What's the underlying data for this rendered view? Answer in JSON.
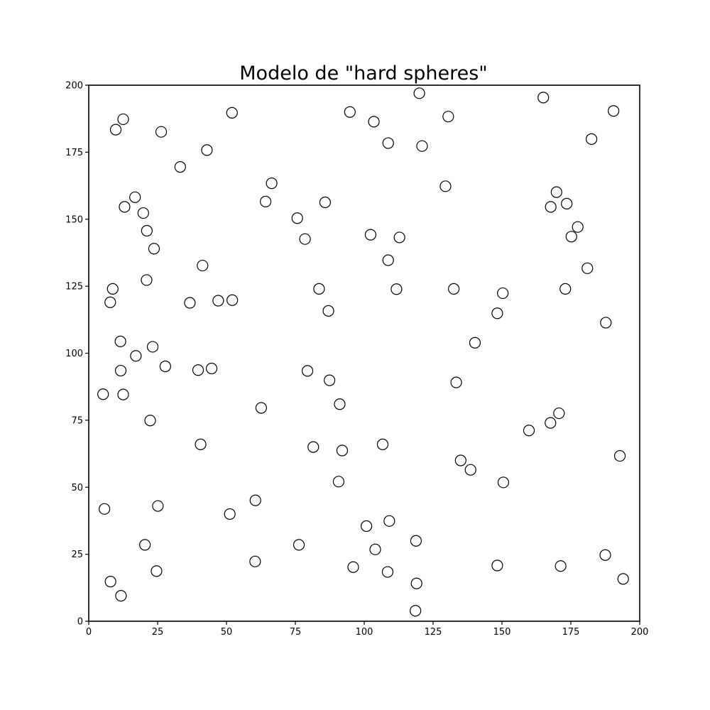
{
  "chart_data": {
    "type": "scatter",
    "title": "Modelo de \"hard spheres\"",
    "xlabel": "",
    "ylabel": "",
    "xlim": [
      0,
      200
    ],
    "ylim": [
      0,
      200
    ],
    "xticks": [
      0,
      25,
      50,
      75,
      100,
      125,
      150,
      175,
      200
    ],
    "yticks": [
      0,
      25,
      50,
      75,
      100,
      125,
      150,
      175,
      200
    ],
    "grid": false,
    "marker": "hollow-circle",
    "marker_edge_color": "#000000",
    "marker_face_color": "#ffffff",
    "points": [
      [
        120.0,
        197.0
      ],
      [
        165.0,
        195.4
      ],
      [
        190.5,
        190.4
      ],
      [
        94.8,
        190.0
      ],
      [
        52.0,
        189.7
      ],
      [
        130.5,
        188.3
      ],
      [
        103.5,
        186.4
      ],
      [
        12.5,
        187.3
      ],
      [
        9.8,
        183.4
      ],
      [
        26.3,
        182.6
      ],
      [
        182.5,
        179.9
      ],
      [
        108.7,
        178.4
      ],
      [
        121.0,
        177.3
      ],
      [
        42.9,
        175.8
      ],
      [
        33.2,
        169.5
      ],
      [
        66.4,
        163.4
      ],
      [
        129.5,
        162.3
      ],
      [
        169.8,
        160.1
      ],
      [
        16.8,
        158.2
      ],
      [
        64.2,
        156.6
      ],
      [
        85.8,
        156.3
      ],
      [
        173.5,
        155.8
      ],
      [
        167.7,
        154.6
      ],
      [
        13.0,
        154.6
      ],
      [
        19.8,
        152.3
      ],
      [
        75.7,
        150.4
      ],
      [
        177.5,
        147.1
      ],
      [
        21.1,
        145.7
      ],
      [
        102.3,
        144.2
      ],
      [
        112.8,
        143.2
      ],
      [
        175.2,
        143.5
      ],
      [
        78.5,
        142.6
      ],
      [
        23.7,
        139.0
      ],
      [
        108.7,
        134.7
      ],
      [
        181.0,
        131.7
      ],
      [
        41.3,
        132.7
      ],
      [
        21.0,
        127.3
      ],
      [
        8.7,
        124.0
      ],
      [
        83.6,
        124.0
      ],
      [
        111.7,
        123.9
      ],
      [
        132.5,
        124.0
      ],
      [
        150.3,
        122.4
      ],
      [
        173.0,
        124.0
      ],
      [
        7.8,
        119.0
      ],
      [
        36.7,
        118.8
      ],
      [
        47.0,
        119.6
      ],
      [
        52.1,
        119.8
      ],
      [
        87.0,
        115.8
      ],
      [
        148.3,
        114.9
      ],
      [
        187.7,
        111.4
      ],
      [
        11.5,
        104.4
      ],
      [
        23.2,
        102.4
      ],
      [
        140.2,
        103.9
      ],
      [
        17.1,
        99.0
      ],
      [
        27.8,
        95.1
      ],
      [
        11.6,
        93.5
      ],
      [
        39.7,
        93.7
      ],
      [
        44.6,
        94.3
      ],
      [
        79.4,
        93.4
      ],
      [
        87.4,
        89.9
      ],
      [
        133.4,
        89.1
      ],
      [
        5.2,
        84.7
      ],
      [
        12.5,
        84.6
      ],
      [
        91.1,
        81.0
      ],
      [
        62.6,
        79.6
      ],
      [
        170.7,
        77.6
      ],
      [
        167.6,
        74.0
      ],
      [
        22.3,
        74.9
      ],
      [
        159.8,
        71.2
      ],
      [
        40.6,
        66.0
      ],
      [
        81.5,
        65.0
      ],
      [
        92.0,
        63.7
      ],
      [
        106.7,
        66.0
      ],
      [
        192.8,
        61.7
      ],
      [
        135.0,
        60.0
      ],
      [
        138.6,
        56.5
      ],
      [
        90.7,
        52.1
      ],
      [
        150.5,
        51.8
      ],
      [
        5.7,
        41.9
      ],
      [
        25.1,
        43.0
      ],
      [
        51.2,
        40.0
      ],
      [
        60.5,
        45.1
      ],
      [
        100.8,
        35.5
      ],
      [
        109.1,
        37.4
      ],
      [
        20.4,
        28.5
      ],
      [
        76.3,
        28.5
      ],
      [
        104.0,
        26.8
      ],
      [
        118.8,
        30.0
      ],
      [
        187.5,
        24.7
      ],
      [
        60.4,
        22.3
      ],
      [
        96.0,
        20.2
      ],
      [
        148.3,
        20.8
      ],
      [
        171.3,
        20.6
      ],
      [
        24.6,
        18.7
      ],
      [
        108.5,
        18.4
      ],
      [
        7.9,
        14.8
      ],
      [
        119.0,
        14.1
      ],
      [
        194.0,
        15.8
      ],
      [
        11.7,
        9.5
      ],
      [
        118.6,
        3.9
      ]
    ]
  }
}
